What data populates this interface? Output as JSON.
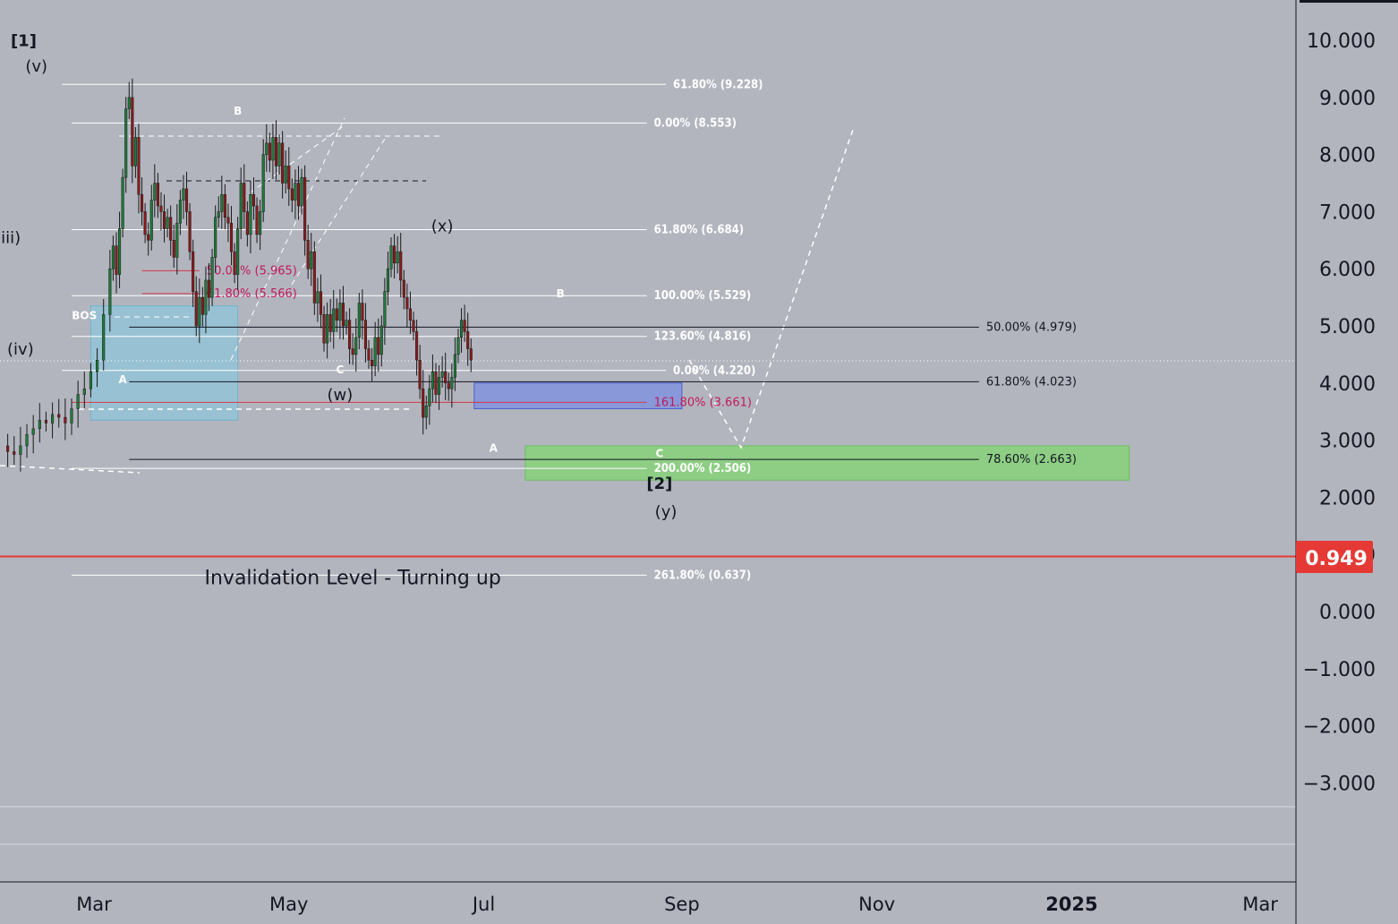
{
  "colors": {
    "background": "#b2b5be",
    "candle_up": "#1f7a3a",
    "candle_down": "#8b1a1a",
    "invalidation_line": "#e53935",
    "price_badge": "#e53935",
    "zone_cyan": "#8fc7da",
    "zone_blue": "#7b8fe0",
    "zone_green": "#86d27a",
    "fib_white": "#ffffff",
    "fib_black": "#131722",
    "fib_red": "#d33a4a"
  },
  "chart_data": {
    "type": "candlestick",
    "y_axis": {
      "range": [
        -3.5,
        10.5
      ],
      "ticks": [
        "10.000",
        "9.000",
        "8.000",
        "7.000",
        "6.000",
        "5.000",
        "4.000",
        "3.000",
        "2.000",
        "1.000",
        "0.000",
        "−1.000",
        "−2.000",
        "−3.000"
      ],
      "tick_values": [
        10,
        9,
        8,
        7,
        6,
        5,
        4,
        3,
        2,
        1,
        0,
        -1,
        -2,
        -3
      ]
    },
    "x_axis": {
      "ticks": [
        "Mar",
        "May",
        "Jul",
        "Sep",
        "Nov",
        "2025",
        "Mar"
      ],
      "tick_days": [
        61,
        122,
        183,
        245,
        306,
        367,
        426
      ],
      "range_days": [
        32,
        436
      ]
    },
    "last_price": {
      "label": "0.949",
      "value": 0.949
    },
    "price_path": [
      [
        32,
        2.9
      ],
      [
        34,
        2.8
      ],
      [
        36,
        2.75
      ],
      [
        38,
        2.9
      ],
      [
        40,
        3.1
      ],
      [
        42,
        3.2
      ],
      [
        44,
        3.35
      ],
      [
        46,
        3.3
      ],
      [
        48,
        3.45
      ],
      [
        50,
        3.4
      ],
      [
        52,
        3.3
      ],
      [
        54,
        3.55
      ],
      [
        56,
        3.8
      ],
      [
        58,
        3.9
      ],
      [
        60,
        4.2
      ],
      [
        62,
        4.4
      ],
      [
        64,
        5.2
      ],
      [
        66,
        6.0
      ],
      [
        67,
        6.4
      ],
      [
        68,
        5.9
      ],
      [
        69,
        6.7
      ],
      [
        70,
        7.6
      ],
      [
        71,
        8.8
      ],
      [
        72,
        9.0
      ],
      [
        73,
        7.8
      ],
      [
        74,
        8.3
      ],
      [
        75,
        7.3
      ],
      [
        76,
        7.0
      ],
      [
        77,
        6.6
      ],
      [
        78,
        6.5
      ],
      [
        79,
        7.2
      ],
      [
        80,
        7.5
      ],
      [
        81,
        7.1
      ],
      [
        82,
        7.0
      ],
      [
        83,
        6.7
      ],
      [
        84,
        6.9
      ],
      [
        85,
        6.5
      ],
      [
        86,
        6.2
      ],
      [
        87,
        6.8
      ],
      [
        88,
        7.2
      ],
      [
        89,
        7.4
      ],
      [
        90,
        7.0
      ],
      [
        91,
        6.3
      ],
      [
        92,
        5.6
      ],
      [
        93,
        5.0
      ],
      [
        94,
        5.5
      ],
      [
        95,
        5.2
      ],
      [
        96,
        5.8
      ],
      [
        97,
        5.5
      ],
      [
        98,
        6.2
      ],
      [
        99,
        6.9
      ],
      [
        100,
        7.0
      ],
      [
        101,
        7.3
      ],
      [
        102,
        6.9
      ],
      [
        103,
        6.8
      ],
      [
        104,
        6.3
      ],
      [
        105,
        5.9
      ],
      [
        106,
        6.7
      ],
      [
        107,
        7.5
      ],
      [
        108,
        7.0
      ],
      [
        109,
        6.6
      ],
      [
        110,
        7.3
      ],
      [
        111,
        7.1
      ],
      [
        112,
        6.6
      ],
      [
        113,
        7.0
      ],
      [
        114,
        8.0
      ],
      [
        115,
        8.2
      ],
      [
        116,
        7.9
      ],
      [
        117,
        8.3
      ],
      [
        118,
        7.8
      ],
      [
        119,
        8.2
      ],
      [
        120,
        7.5
      ],
      [
        121,
        7.8
      ],
      [
        122,
        7.4
      ],
      [
        123,
        7.2
      ],
      [
        124,
        7.5
      ],
      [
        125,
        7.1
      ],
      [
        126,
        7.6
      ],
      [
        127,
        6.5
      ],
      [
        128,
        6.0
      ],
      [
        129,
        6.3
      ],
      [
        130,
        5.4
      ],
      [
        131,
        5.6
      ],
      [
        132,
        5.2
      ],
      [
        133,
        4.7
      ],
      [
        134,
        5.2
      ],
      [
        135,
        4.9
      ],
      [
        136,
        5.3
      ],
      [
        137,
        5.1
      ],
      [
        138,
        5.4
      ],
      [
        139,
        5.0
      ],
      [
        140,
        5.1
      ],
      [
        141,
        4.6
      ],
      [
        142,
        4.5
      ],
      [
        143,
        4.8
      ],
      [
        144,
        5.4
      ],
      [
        145,
        5.1
      ],
      [
        146,
        4.6
      ],
      [
        147,
        4.4
      ],
      [
        148,
        4.3
      ],
      [
        149,
        4.8
      ],
      [
        150,
        4.5
      ],
      [
        151,
        5.0
      ],
      [
        152,
        5.6
      ],
      [
        153,
        6.0
      ],
      [
        154,
        6.4
      ],
      [
        155,
        6.1
      ],
      [
        156,
        6.3
      ],
      [
        157,
        5.8
      ],
      [
        158,
        5.5
      ],
      [
        159,
        5.3
      ],
      [
        160,
        5.1
      ],
      [
        161,
        4.9
      ],
      [
        162,
        4.4
      ],
      [
        163,
        3.9
      ],
      [
        164,
        3.4
      ],
      [
        165,
        3.6
      ],
      [
        166,
        3.9
      ],
      [
        167,
        4.2
      ],
      [
        168,
        3.8
      ],
      [
        169,
        4.1
      ],
      [
        170,
        4.2
      ],
      [
        171,
        4.0
      ],
      [
        172,
        3.9
      ],
      [
        173,
        4.1
      ],
      [
        174,
        4.5
      ],
      [
        175,
        4.8
      ],
      [
        176,
        5.1
      ],
      [
        177,
        4.9
      ],
      [
        178,
        4.6
      ],
      [
        179,
        4.4
      ]
    ],
    "fib_levels": [
      {
        "label": "61.80% (9.228)",
        "value": 9.228,
        "style": "white",
        "x_from": 51,
        "x_to": 240
      },
      {
        "label": "0.00% (8.553)",
        "value": 8.553,
        "style": "white",
        "x_from": 54,
        "x_to": 234
      },
      {
        "label": "61.80% (6.684)",
        "value": 6.684,
        "style": "white",
        "x_from": 54,
        "x_to": 234
      },
      {
        "label": "100.00% (5.529)",
        "value": 5.529,
        "style": "white",
        "x_from": 54,
        "x_to": 234
      },
      {
        "label": "123.60% (4.816)",
        "value": 4.816,
        "style": "white",
        "x_from": 54,
        "x_to": 234
      },
      {
        "label": "0.00% (4.220)",
        "value": 4.22,
        "style": "white",
        "x_from": 51,
        "x_to": 240
      },
      {
        "label": "161.80% (3.661)",
        "value": 3.661,
        "style": "red",
        "x_from": 54,
        "x_to": 234
      },
      {
        "label": "200.00% (2.506)",
        "value": 2.506,
        "style": "white",
        "x_from": 54,
        "x_to": 234
      },
      {
        "label": "261.80% (0.637)",
        "value": 0.637,
        "style": "white",
        "x_from": 54,
        "x_to": 234
      },
      {
        "label": "50.00% (4.979)",
        "value": 4.979,
        "style": "black",
        "x_from": 72,
        "x_to": 338
      },
      {
        "label": "61.80% (4.023)",
        "value": 4.023,
        "style": "black",
        "x_from": 72,
        "x_to": 338
      },
      {
        "label": "78.60% (2.663)",
        "value": 2.663,
        "style": "black",
        "x_from": 72,
        "x_to": 338
      },
      {
        "label": "50.00% (5.965)",
        "value": 5.965,
        "style": "red",
        "x_from": 76,
        "x_to": 94
      },
      {
        "label": "61.80% (5.566)",
        "value": 5.566,
        "style": "red",
        "x_from": 76,
        "x_to": 94
      }
    ],
    "zones": [
      {
        "name": "cyan",
        "x_from": 60,
        "x_to": 106,
        "y_from": 3.35,
        "y_to": 5.35
      },
      {
        "name": "blue",
        "x_from": 180,
        "x_to": 245,
        "y_from": 3.55,
        "y_to": 4.0
      },
      {
        "name": "green",
        "x_from": 196,
        "x_to": 385,
        "y_from": 2.3,
        "y_to": 2.9
      }
    ],
    "wave_labels": [
      {
        "text": "[1]",
        "x": 39,
        "y": 9.9,
        "style": "dark"
      },
      {
        "text": "(v)",
        "x": 43,
        "y": 9.45,
        "style": "dark"
      },
      {
        "text": "(iii)",
        "x": 34,
        "y": 6.45,
        "style": "dark"
      },
      {
        "text": "(iv)",
        "x": 38,
        "y": 4.5,
        "style": "dark"
      },
      {
        "text": "BOS",
        "x": 58,
        "y": 5.12,
        "style": "white"
      },
      {
        "text": "A",
        "x": 70,
        "y": 4.0,
        "style": "white"
      },
      {
        "text": "B",
        "x": 106,
        "y": 8.7,
        "style": "white"
      },
      {
        "text": "C",
        "x": 138,
        "y": 4.17,
        "style": "white"
      },
      {
        "text": "(w)",
        "x": 138,
        "y": 3.7,
        "style": "dark"
      },
      {
        "text": "(x)",
        "x": 170,
        "y": 6.65,
        "style": "dark"
      },
      {
        "text": "A",
        "x": 186,
        "y": 2.8,
        "style": "white"
      },
      {
        "text": "B",
        "x": 207,
        "y": 5.5,
        "style": "white"
      },
      {
        "text": "C",
        "x": 238,
        "y": 2.7,
        "style": "white"
      },
      {
        "text": "[2]",
        "x": 238,
        "y": 2.15,
        "style": "dark"
      },
      {
        "text": "(y)",
        "x": 240,
        "y": 1.65,
        "style": "dark"
      }
    ],
    "annotations": [
      {
        "text": "Invalidation Level - Turning up",
        "x": 142,
        "y": 0.6
      }
    ]
  }
}
